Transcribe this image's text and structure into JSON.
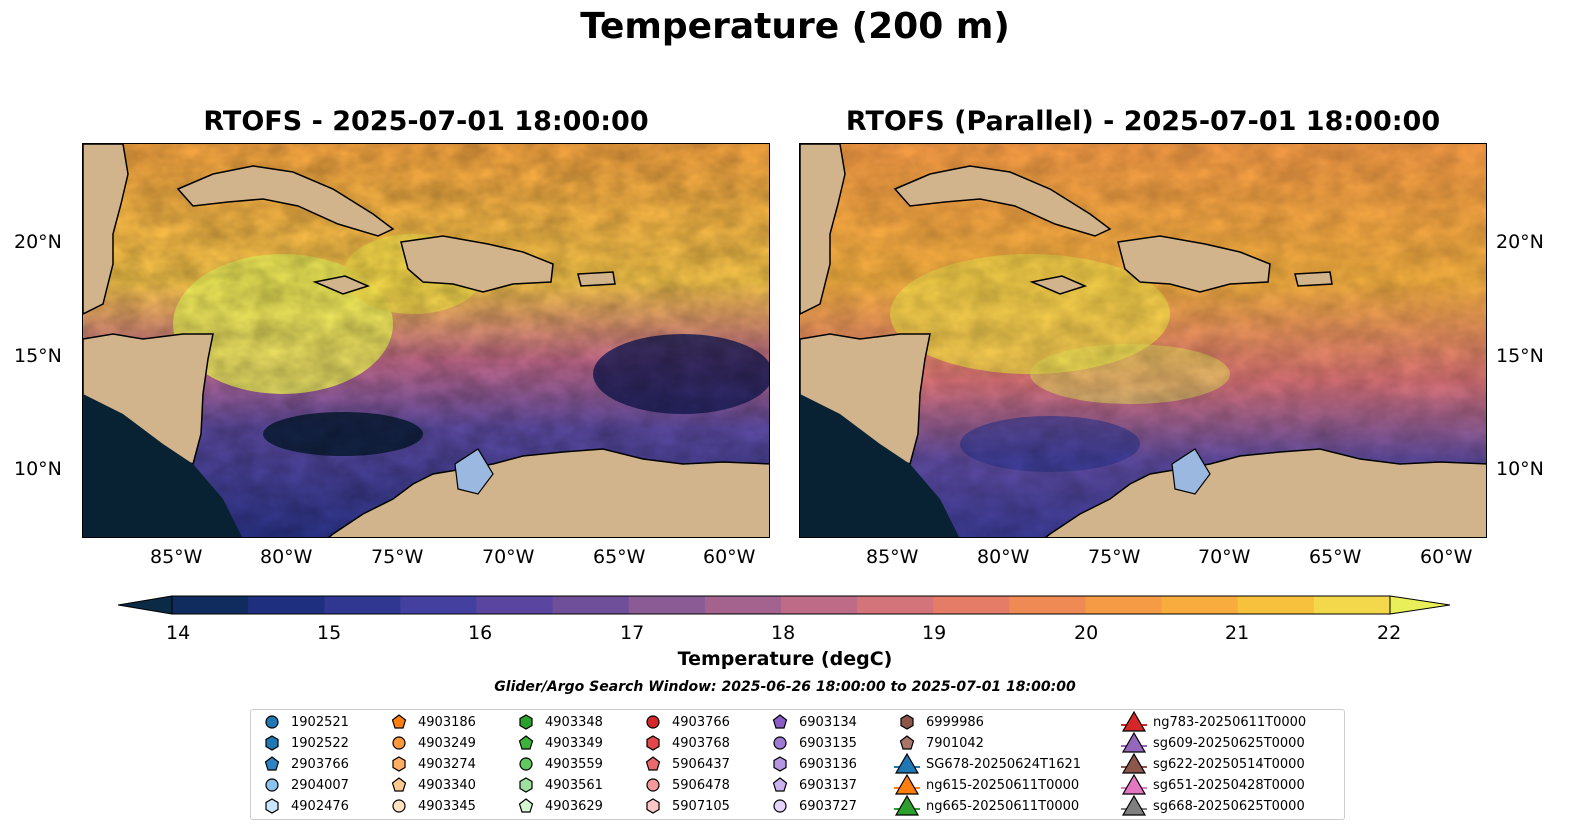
{
  "figure": {
    "title": "Temperature (200 m)",
    "panels": [
      {
        "title": "RTOFS - 2025-07-01 18:00:00"
      },
      {
        "title": "RTOFS (Parallel) - 2025-07-01 18:00:00"
      }
    ],
    "lon_ticks": [
      "85°W",
      "80°W",
      "75°W",
      "70°W",
      "65°W",
      "60°W"
    ],
    "lat_ticks": [
      "20°N",
      "15°N",
      "10°N"
    ],
    "colorbar": {
      "label": "Temperature (degC)",
      "ticks": [
        "14",
        "15",
        "16",
        "17",
        "18",
        "19",
        "20",
        "21",
        "22"
      ],
      "range": [
        14,
        22
      ],
      "colors": [
        "#0b2a45",
        "#102c5f",
        "#1f2f80",
        "#2f3790",
        "#43409f",
        "#5a46a0",
        "#6f4e9a",
        "#8a5b94",
        "#a3638e",
        "#bd6b86",
        "#d3737a",
        "#e47c68",
        "#ef8a55",
        "#f59a45",
        "#f8ac3d",
        "#f8c13d",
        "#f2d84a",
        "#e8ef58"
      ]
    },
    "search_window": "Glider/Argo Search Window: 2025-06-26 18:00:00 to 2025-07-01 18:00:00",
    "legend": [
      {
        "label": "1902521",
        "marker": "circle",
        "color": "#1f77b4"
      },
      {
        "label": "1902522",
        "marker": "hexagon",
        "color": "#1f77b4"
      },
      {
        "label": "2903766",
        "marker": "pentagon",
        "color": "#2b83c6"
      },
      {
        "label": "2904007",
        "marker": "circle",
        "color": "#8cc3ee"
      },
      {
        "label": "4902476",
        "marker": "hexagon",
        "color": "#c9e6fb"
      },
      {
        "label": "4903186",
        "marker": "pentagon",
        "color": "#ff7f0e"
      },
      {
        "label": "4903249",
        "marker": "circle",
        "color": "#ff9a3c"
      },
      {
        "label": "4903274",
        "marker": "hexagon",
        "color": "#ffae62"
      },
      {
        "label": "4903340",
        "marker": "pentagon",
        "color": "#ffc88e"
      },
      {
        "label": "4903345",
        "marker": "circle",
        "color": "#ffe2c0"
      },
      {
        "label": "4903348",
        "marker": "hexagon",
        "color": "#2ca02c"
      },
      {
        "label": "4903349",
        "marker": "pentagon",
        "color": "#3cb43c"
      },
      {
        "label": "4903559",
        "marker": "circle",
        "color": "#5fc85f"
      },
      {
        "label": "4903561",
        "marker": "hexagon",
        "color": "#9fe29f"
      },
      {
        "label": "4903629",
        "marker": "pentagon",
        "color": "#d6f6d6"
      },
      {
        "label": "4903766",
        "marker": "circle",
        "color": "#d62728"
      },
      {
        "label": "4903768",
        "marker": "hexagon",
        "color": "#e2474a"
      },
      {
        "label": "5906437",
        "marker": "pentagon",
        "color": "#eb6a6c"
      },
      {
        "label": "5906478",
        "marker": "circle",
        "color": "#f59a9a"
      },
      {
        "label": "5907105",
        "marker": "hexagon",
        "color": "#fcc6c6"
      },
      {
        "label": "6903134",
        "marker": "pentagon",
        "color": "#8c5cc6"
      },
      {
        "label": "6903135",
        "marker": "circle",
        "color": "#a07ad4"
      },
      {
        "label": "6903136",
        "marker": "hexagon",
        "color": "#b596e2"
      },
      {
        "label": "6903137",
        "marker": "pentagon",
        "color": "#cbb2f0"
      },
      {
        "label": "6903727",
        "marker": "circle",
        "color": "#e4d4fb"
      },
      {
        "label": "6999986",
        "marker": "hexagon",
        "color": "#8c564b"
      },
      {
        "label": "7901042",
        "marker": "pentagon",
        "color": "#a8756a"
      },
      {
        "label": "SG678-20250624T1621",
        "marker": "triangle",
        "color": "#1f77b4"
      },
      {
        "label": "ng615-20250611T0000",
        "marker": "triangle",
        "color": "#ff7f0e"
      },
      {
        "label": "ng665-20250611T0000",
        "marker": "triangle",
        "color": "#2ca02c"
      },
      {
        "label": "ng783-20250611T0000",
        "marker": "triangle",
        "color": "#d62728"
      },
      {
        "label": "sg609-20250625T0000",
        "marker": "triangle",
        "color": "#9467bd"
      },
      {
        "label": "sg622-20250514T0000",
        "marker": "triangle",
        "color": "#8c564b"
      },
      {
        "label": "sg651-20250428T0000",
        "marker": "triangle",
        "color": "#e377c2"
      },
      {
        "label": "sg668-20250625T0000",
        "marker": "triangle",
        "color": "#7f7f7f"
      }
    ]
  }
}
